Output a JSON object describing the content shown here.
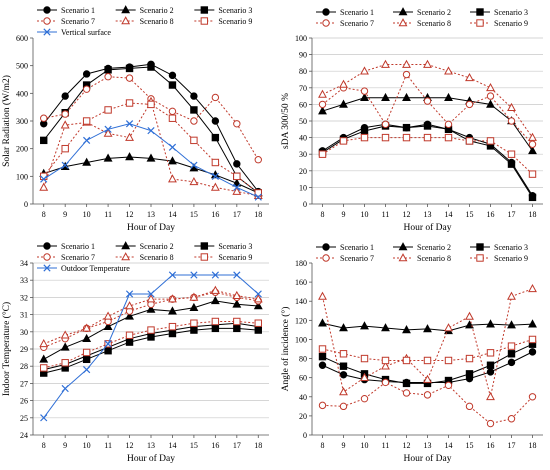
{
  "chart_data": [
    {
      "type": "line",
      "xlabel": "Hour of Day",
      "ylabel": "Solar Radiation (W/m2)",
      "ylim": [
        0,
        600
      ],
      "yticks": [
        0,
        100,
        200,
        300,
        400,
        500,
        600
      ],
      "x": [
        8,
        9,
        10,
        11,
        12,
        13,
        14,
        15,
        16,
        17,
        18
      ],
      "grid": false,
      "legend_position": "top",
      "series": [
        {
          "name": "Scenario 1",
          "color": "#000000",
          "dash": "solid",
          "marker": "circle-filled",
          "values": [
            290,
            390,
            470,
            490,
            495,
            505,
            465,
            390,
            300,
            145,
            45
          ]
        },
        {
          "name": "Scenario 2",
          "color": "#000000",
          "dash": "solid",
          "marker": "triangle-filled",
          "values": [
            110,
            135,
            150,
            165,
            170,
            165,
            155,
            130,
            105,
            75,
            40
          ]
        },
        {
          "name": "Scenario 3",
          "color": "#000000",
          "dash": "solid",
          "marker": "square-filled",
          "values": [
            230,
            330,
            430,
            485,
            490,
            495,
            430,
            340,
            240,
            100,
            40
          ]
        },
        {
          "name": "Scenario 7",
          "color": "#c0392b",
          "dash": "dot",
          "marker": "circle-open",
          "values": [
            310,
            325,
            415,
            460,
            455,
            380,
            335,
            300,
            385,
            290,
            160
          ]
        },
        {
          "name": "Scenario 8",
          "color": "#c0392b",
          "dash": "dot",
          "marker": "triangle-open",
          "values": [
            60,
            285,
            295,
            255,
            240,
            370,
            90,
            80,
            60,
            45,
            30
          ]
        },
        {
          "name": "Scenario 9",
          "color": "#c0392b",
          "dash": "dot",
          "marker": "square-open",
          "values": [
            100,
            200,
            300,
            340,
            365,
            360,
            310,
            230,
            150,
            100,
            40
          ]
        },
        {
          "name": "Vertical surface",
          "color": "#2f6fd6",
          "dash": "solid",
          "marker": "x",
          "values": [
            90,
            140,
            230,
            270,
            290,
            265,
            205,
            140,
            100,
            60,
            25
          ]
        }
      ]
    },
    {
      "type": "line",
      "xlabel": "Hour of Day",
      "ylabel": "sDA 300/50 %",
      "ylim": [
        0,
        100
      ],
      "yticks": [
        0,
        10,
        20,
        30,
        40,
        50,
        60,
        70,
        80,
        90,
        100
      ],
      "x": [
        8,
        9,
        10,
        11,
        12,
        13,
        14,
        15,
        16,
        17,
        18
      ],
      "grid": true,
      "legend_position": "top",
      "series": [
        {
          "name": "Scenario 1",
          "color": "#000000",
          "dash": "solid",
          "marker": "circle-filled",
          "values": [
            32,
            40,
            46,
            48,
            46,
            48,
            45,
            40,
            36,
            25,
            5
          ]
        },
        {
          "name": "Scenario 2",
          "color": "#000000",
          "dash": "solid",
          "marker": "triangle-filled",
          "values": [
            56,
            60,
            64,
            64,
            64,
            64,
            64,
            62,
            60,
            50,
            32
          ]
        },
        {
          "name": "Scenario 3",
          "color": "#000000",
          "dash": "solid",
          "marker": "square-filled",
          "values": [
            31,
            39,
            44,
            47,
            46,
            47,
            45,
            38,
            35,
            24,
            4
          ]
        },
        {
          "name": "Scenario 7",
          "color": "#c0392b",
          "dash": "dot",
          "marker": "circle-open",
          "values": [
            60,
            70,
            68,
            48,
            78,
            62,
            48,
            60,
            65,
            50,
            36
          ]
        },
        {
          "name": "Scenario 8",
          "color": "#c0392b",
          "dash": "dot",
          "marker": "triangle-open",
          "values": [
            66,
            72,
            80,
            84,
            84,
            84,
            80,
            76,
            70,
            58,
            40
          ]
        },
        {
          "name": "Scenario 9",
          "color": "#c0392b",
          "dash": "dot",
          "marker": "square-open",
          "values": [
            30,
            38,
            40,
            40,
            40,
            40,
            40,
            38,
            38,
            30,
            18
          ]
        }
      ]
    },
    {
      "type": "line",
      "xlabel": "Hour of Day",
      "ylabel": "Indoor Temperature (°C)",
      "ylim": [
        24,
        34
      ],
      "yticks": [
        24,
        25,
        26,
        27,
        28,
        29,
        30,
        31,
        32,
        33,
        34
      ],
      "x": [
        8,
        9,
        10,
        11,
        12,
        13,
        14,
        15,
        16,
        17,
        18
      ],
      "grid": true,
      "legend_position": "top",
      "series": [
        {
          "name": "Scenario 1",
          "color": "#000000",
          "dash": "solid",
          "marker": "circle-filled",
          "values": [
            27.8,
            28.1,
            28.6,
            29.1,
            29.6,
            29.9,
            30.1,
            30.3,
            30.4,
            30.5,
            30.3
          ]
        },
        {
          "name": "Scenario 2",
          "color": "#000000",
          "dash": "solid",
          "marker": "triangle-filled",
          "values": [
            28.4,
            29.1,
            29.6,
            30.3,
            30.9,
            31.3,
            31.2,
            31.4,
            31.8,
            31.6,
            31.5
          ]
        },
        {
          "name": "Scenario 3",
          "color": "#000000",
          "dash": "solid",
          "marker": "square-filled",
          "values": [
            27.6,
            27.9,
            28.4,
            28.9,
            29.4,
            29.7,
            29.9,
            30.1,
            30.2,
            30.2,
            30.1
          ]
        },
        {
          "name": "Scenario 7",
          "color": "#c0392b",
          "dash": "dot",
          "marker": "circle-open",
          "values": [
            29.1,
            29.6,
            30.2,
            30.6,
            31.2,
            31.6,
            31.9,
            32.0,
            32.3,
            32.0,
            31.8
          ]
        },
        {
          "name": "Scenario 8",
          "color": "#c0392b",
          "dash": "dot",
          "marker": "triangle-open",
          "values": [
            29.3,
            29.8,
            30.2,
            30.9,
            31.5,
            31.9,
            31.9,
            32.0,
            32.4,
            32.1,
            31.9
          ]
        },
        {
          "name": "Scenario 9",
          "color": "#c0392b",
          "dash": "dot",
          "marker": "square-open",
          "values": [
            27.9,
            28.2,
            28.8,
            29.3,
            29.8,
            30.1,
            30.3,
            30.5,
            30.6,
            30.6,
            30.5
          ]
        },
        {
          "name": "Outdoor Temperature",
          "color": "#2f6fd6",
          "dash": "solid",
          "marker": "x",
          "values": [
            25.0,
            26.7,
            27.8,
            29.3,
            32.2,
            32.2,
            33.3,
            33.3,
            33.3,
            33.3,
            32.2
          ]
        }
      ]
    },
    {
      "type": "line",
      "xlabel": "Hour of Day",
      "ylabel": "Angle of incidence (°)",
      "ylim": [
        0,
        180
      ],
      "yticks": [
        0,
        20,
        40,
        60,
        80,
        100,
        120,
        140,
        160,
        180
      ],
      "x": [
        8,
        9,
        10,
        11,
        12,
        13,
        14,
        15,
        16,
        17,
        18
      ],
      "grid": false,
      "legend_position": "top",
      "series": [
        {
          "name": "Scenario 1",
          "color": "#000000",
          "dash": "solid",
          "marker": "circle-filled",
          "values": [
            73,
            63,
            58,
            56,
            55,
            55,
            55,
            59,
            66,
            76,
            87
          ]
        },
        {
          "name": "Scenario 2",
          "color": "#000000",
          "dash": "solid",
          "marker": "triangle-filled",
          "values": [
            117,
            112,
            114,
            112,
            110,
            111,
            109,
            115,
            116,
            115,
            116
          ]
        },
        {
          "name": "Scenario 3",
          "color": "#000000",
          "dash": "solid",
          "marker": "square-filled",
          "values": [
            82,
            72,
            64,
            58,
            54,
            54,
            57,
            64,
            73,
            85,
            95
          ]
        },
        {
          "name": "Scenario 7",
          "color": "#c0392b",
          "dash": "dot",
          "marker": "circle-open",
          "values": [
            31,
            30,
            38,
            55,
            44,
            42,
            52,
            30,
            12,
            17,
            40
          ]
        },
        {
          "name": "Scenario 8",
          "color": "#c0392b",
          "dash": "dot",
          "marker": "triangle-open",
          "values": [
            145,
            45,
            60,
            72,
            80,
            58,
            112,
            124,
            40,
            145,
            153
          ]
        },
        {
          "name": "Scenario 9",
          "color": "#c0392b",
          "dash": "dot",
          "marker": "square-open",
          "values": [
            90,
            85,
            80,
            78,
            78,
            78,
            78,
            80,
            86,
            93,
            100
          ]
        }
      ]
    }
  ]
}
